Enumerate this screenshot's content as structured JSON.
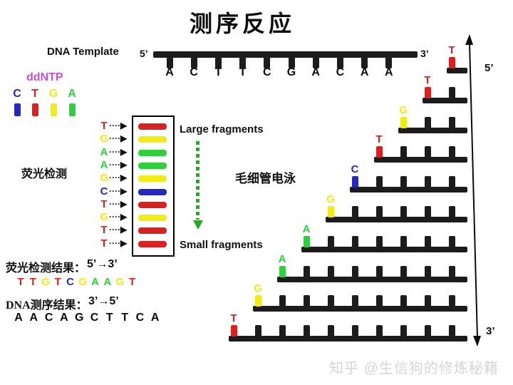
{
  "title": "测序反应",
  "colors": {
    "red": "#da2020",
    "yellow": "#f1ec16",
    "green": "#30cf3e",
    "blue": "#2727c2",
    "magenta": "#cf4fd4",
    "arrow_green": "#1fae1f",
    "strand_black": "#1c1c1c",
    "watermark_gray": "#d5d5d5"
  },
  "template": {
    "label": "DNA Template",
    "five_prime": "5’",
    "three_prime": "3’",
    "bases": [
      "A",
      "C",
      "T",
      "T",
      "C",
      "G",
      "A",
      "C",
      "A",
      "A"
    ]
  },
  "ddntp": {
    "label": "ddNTP",
    "items": [
      {
        "base": "C",
        "color": "blue"
      },
      {
        "base": "T",
        "color": "red"
      },
      {
        "base": "G",
        "color": "yellow"
      },
      {
        "base": "A",
        "color": "green"
      }
    ]
  },
  "gel": {
    "label": "荧光检测",
    "arrow_glyph": "····▶",
    "lanes": [
      {
        "base": "T",
        "color": "red"
      },
      {
        "base": "G",
        "color": "yellow"
      },
      {
        "base": "A",
        "color": "green"
      },
      {
        "base": "A",
        "color": "green"
      },
      {
        "base": "G",
        "color": "yellow"
      },
      {
        "base": "C",
        "color": "blue"
      },
      {
        "base": "T",
        "color": "red"
      },
      {
        "base": "G",
        "color": "yellow"
      },
      {
        "base": "T",
        "color": "red"
      },
      {
        "base": "T",
        "color": "red"
      }
    ]
  },
  "electrophoresis": {
    "large_label": "Large fragments",
    "small_label": "Small fragments",
    "method_label": "毛细管电泳"
  },
  "ladder": {
    "five_prime": "5’",
    "three_prime": "3’",
    "fragments": [
      {
        "base": "T",
        "color": "red",
        "ticks": 1
      },
      {
        "base": "T",
        "color": "red",
        "ticks": 2
      },
      {
        "base": "G",
        "color": "yellow",
        "ticks": 3
      },
      {
        "base": "T",
        "color": "red",
        "ticks": 4
      },
      {
        "base": "C",
        "color": "blue",
        "ticks": 5
      },
      {
        "base": "G",
        "color": "yellow",
        "ticks": 6
      },
      {
        "base": "A",
        "color": "green",
        "ticks": 7
      },
      {
        "base": "A",
        "color": "green",
        "ticks": 8
      },
      {
        "base": "G",
        "color": "yellow",
        "ticks": 9
      },
      {
        "base": "T",
        "color": "red",
        "ticks": 10
      }
    ]
  },
  "results": {
    "fluor_label": "荧光检测结果：",
    "fluor_direction": "5’→3’",
    "fluor_sequence": [
      {
        "base": "T",
        "color": "red"
      },
      {
        "base": "T",
        "color": "red"
      },
      {
        "base": "G",
        "color": "yellow"
      },
      {
        "base": "T",
        "color": "red"
      },
      {
        "base": "C",
        "color": "blue"
      },
      {
        "base": "G",
        "color": "yellow"
      },
      {
        "base": "A",
        "color": "green"
      },
      {
        "base": "A",
        "color": "green"
      },
      {
        "base": "G",
        "color": "yellow"
      },
      {
        "base": "T",
        "color": "red"
      }
    ],
    "dna_label": "DNA测序结果：",
    "dna_direction": "3’→5’",
    "dna_sequence": [
      "A",
      "A",
      "C",
      "A",
      "G",
      "C",
      "T",
      "T",
      "C",
      "A"
    ]
  },
  "watermark": "知乎 @生信狗的修炼秘籍"
}
